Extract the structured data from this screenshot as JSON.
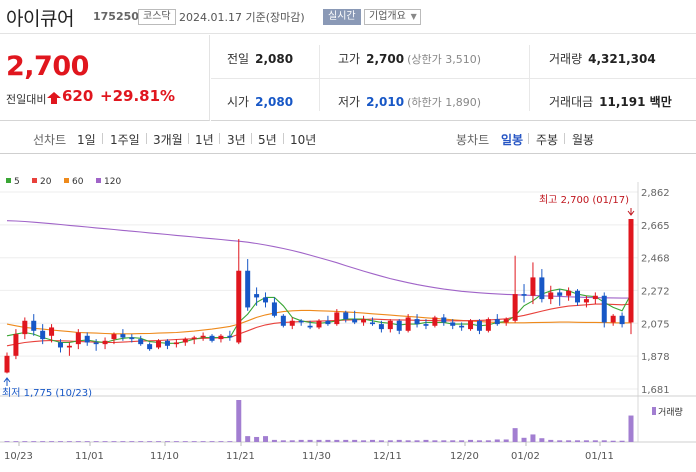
{
  "header": {
    "name": "아이큐어",
    "code": "175250",
    "market": "코스닥",
    "base_date": "2024.01.17 기준(장마감)",
    "realtime_label": "실시간",
    "company_info_label": "기업개요"
  },
  "price": {
    "current": "2,700",
    "change_label": "전일대비",
    "change": "620",
    "change_rate": "+29.81%",
    "direction": "up-limit",
    "color": "#e0161e"
  },
  "stats": {
    "prev_close": {
      "label": "전일",
      "value": "2,080"
    },
    "open": {
      "label": "시가",
      "value": "2,080"
    },
    "high": {
      "label": "고가",
      "value": "2,700",
      "sub": "(상한가 3,510)"
    },
    "low": {
      "label": "저가",
      "value": "2,010",
      "sub": "(하한가 1,890)"
    },
    "volume": {
      "label": "거래량",
      "value": "4,321,304"
    },
    "amount": {
      "label": "거래대금",
      "value": "11,191",
      "unit": "백만"
    }
  },
  "tabs": {
    "line_label": "선차트",
    "line_items": [
      "1일",
      "1주일",
      "3개월",
      "1년",
      "3년",
      "5년",
      "10년"
    ],
    "candle_label": "봉차트",
    "candle_items": [
      "일봉",
      "주봉",
      "월봉"
    ],
    "active_candle": "일봉"
  },
  "chart_data": {
    "type": "candlestick",
    "legend": [
      {
        "name": "5",
        "color": "#3aa635"
      },
      {
        "name": "20",
        "color": "#e8413b"
      },
      {
        "name": "60",
        "color": "#ee8a1c"
      },
      {
        "name": "120",
        "color": "#a064c8"
      }
    ],
    "y_ticks": [
      "2,862",
      "2,665",
      "2,468",
      "2,272",
      "2,075",
      "1,878",
      "1,681"
    ],
    "y_tick_values": [
      2862,
      2665,
      2468,
      2272,
      2075,
      1878,
      1681
    ],
    "ylim": [
      1681,
      2862
    ],
    "x_labels": [
      "10/23",
      "11/01",
      "11/10",
      "11/21",
      "11/30",
      "12/11",
      "12/20",
      "01/02",
      "01/11"
    ],
    "high_annotation": "최고 2,700 (01/17)",
    "low_annotation": "최저 1,775 (10/23)",
    "volume_legend": "거래량",
    "candles": [
      [
        1780,
        1900,
        1775,
        1880
      ],
      [
        1880,
        2040,
        1860,
        2010
      ],
      [
        2010,
        2110,
        1980,
        2090
      ],
      [
        2090,
        2130,
        2000,
        2030
      ],
      [
        2030,
        2070,
        1950,
        1980
      ],
      [
        2000,
        2070,
        1960,
        2050
      ],
      [
        1960,
        1980,
        1900,
        1930
      ],
      [
        1930,
        1960,
        1880,
        1940
      ],
      [
        1950,
        2040,
        1920,
        2020
      ],
      [
        2000,
        2020,
        1940,
        1960
      ],
      [
        1960,
        1980,
        1910,
        1950
      ],
      [
        1950,
        1990,
        1920,
        1970
      ],
      [
        1980,
        2020,
        1950,
        2010
      ],
      [
        2010,
        2040,
        1970,
        1990
      ],
      [
        1990,
        2010,
        1960,
        1980
      ],
      [
        1980,
        2000,
        1940,
        1950
      ],
      [
        1950,
        1960,
        1910,
        1920
      ],
      [
        1930,
        1980,
        1920,
        1970
      ],
      [
        1970,
        1980,
        1920,
        1940
      ],
      [
        1950,
        1980,
        1930,
        1960
      ],
      [
        1960,
        1990,
        1940,
        1980
      ],
      [
        1980,
        2000,
        1950,
        1990
      ],
      [
        1990,
        2020,
        1970,
        2000
      ],
      [
        2000,
        2010,
        1960,
        1970
      ],
      [
        1980,
        2010,
        1960,
        2000
      ],
      [
        2000,
        2030,
        1970,
        1990
      ],
      [
        1960,
        2580,
        1950,
        2390
      ],
      [
        2390,
        2460,
        2150,
        2170
      ],
      [
        2250,
        2290,
        2180,
        2230
      ],
      [
        2230,
        2260,
        2170,
        2200
      ],
      [
        2200,
        2230,
        2110,
        2120
      ],
      [
        2120,
        2130,
        2050,
        2060
      ],
      [
        2060,
        2110,
        2040,
        2090
      ],
      [
        2090,
        2100,
        2060,
        2080
      ],
      [
        2060,
        2090,
        2040,
        2050
      ],
      [
        2050,
        2100,
        2040,
        2090
      ],
      [
        2090,
        2120,
        2060,
        2070
      ],
      [
        2070,
        2160,
        2060,
        2140
      ],
      [
        2140,
        2150,
        2080,
        2100
      ],
      [
        2100,
        2150,
        2070,
        2080
      ],
      [
        2080,
        2120,
        2060,
        2100
      ],
      [
        2080,
        2110,
        2060,
        2070
      ],
      [
        2070,
        2090,
        2020,
        2040
      ],
      [
        2040,
        2100,
        2020,
        2090
      ],
      [
        2090,
        2100,
        2010,
        2030
      ],
      [
        2030,
        2130,
        2020,
        2110
      ],
      [
        2100,
        2130,
        2050,
        2070
      ],
      [
        2070,
        2100,
        2040,
        2060
      ],
      [
        2060,
        2120,
        2050,
        2110
      ],
      [
        2110,
        2130,
        2060,
        2080
      ],
      [
        2080,
        2100,
        2040,
        2060
      ],
      [
        2060,
        2080,
        2030,
        2050
      ],
      [
        2040,
        2100,
        2030,
        2090
      ],
      [
        2090,
        2100,
        2010,
        2030
      ],
      [
        2030,
        2110,
        2020,
        2100
      ],
      [
        2100,
        2130,
        2060,
        2070
      ],
      [
        2080,
        2110,
        2060,
        2100
      ],
      [
        2090,
        2480,
        2080,
        2250
      ],
      [
        2250,
        2310,
        2200,
        2240
      ],
      [
        2240,
        2440,
        2190,
        2350
      ],
      [
        2350,
        2400,
        2200,
        2220
      ],
      [
        2220,
        2300,
        2190,
        2260
      ],
      [
        2260,
        2280,
        2180,
        2240
      ],
      [
        2240,
        2290,
        2210,
        2270
      ],
      [
        2270,
        2280,
        2180,
        2200
      ],
      [
        2200,
        2240,
        2170,
        2220
      ],
      [
        2220,
        2260,
        2190,
        2240
      ],
      [
        2240,
        2260,
        2050,
        2080
      ],
      [
        2080,
        2130,
        2060,
        2120
      ],
      [
        2120,
        2140,
        2050,
        2070
      ],
      [
        2080,
        2700,
        2010,
        2700
      ]
    ],
    "ma5": [
      2000,
      2010,
      2020,
      2010,
      1990,
      1975,
      1960,
      1960,
      1970,
      1975,
      1965,
      1960,
      1975,
      1985,
      1990,
      1985,
      1965,
      1960,
      1955,
      1955,
      1965,
      1980,
      1990,
      1990,
      1990,
      1990,
      2080,
      2130,
      2200,
      2230,
      2230,
      2180,
      2110,
      2090,
      2080,
      2075,
      2080,
      2090,
      2100,
      2100,
      2100,
      2090,
      2080,
      2075,
      2065,
      2070,
      2070,
      2080,
      2080,
      2080,
      2070,
      2070,
      2070,
      2060,
      2065,
      2080,
      2085,
      2120,
      2180,
      2210,
      2250,
      2270,
      2280,
      2270,
      2250,
      2240,
      2235,
      2200,
      2170,
      2150,
      2250
    ],
    "ma20": [
      1940,
      1950,
      1960,
      1965,
      1970,
      1972,
      1970,
      1968,
      1966,
      1964,
      1962,
      1960,
      1960,
      1962,
      1965,
      1968,
      1970,
      1972,
      1975,
      1978,
      1980,
      1982,
      1985,
      1986,
      1988,
      1990,
      2010,
      2030,
      2050,
      2065,
      2075,
      2080,
      2082,
      2085,
      2087,
      2088,
      2090,
      2092,
      2094,
      2096,
      2098,
      2100,
      2098,
      2096,
      2095,
      2094,
      2093,
      2092,
      2091,
      2090,
      2090,
      2090,
      2091,
      2092,
      2094,
      2098,
      2102,
      2112,
      2122,
      2135,
      2148,
      2160,
      2170,
      2178,
      2182,
      2186,
      2190,
      2190,
      2188,
      2186,
      2190
    ],
    "ma60": [
      2070,
      2060,
      2050,
      2045,
      2040,
      2035,
      2030,
      2025,
      2020,
      2018,
      2016,
      2014,
      2012,
      2012,
      2012,
      2013,
      2014,
      2016,
      2018,
      2020,
      2024,
      2028,
      2034,
      2040,
      2048,
      2056,
      2070,
      2090,
      2110,
      2125,
      2136,
      2145,
      2150,
      2152,
      2152,
      2150,
      2148,
      2146,
      2143,
      2140,
      2136,
      2132,
      2128,
      2124,
      2120,
      2116,
      2112,
      2108,
      2104,
      2100,
      2096,
      2092,
      2088,
      2085,
      2082,
      2080,
      2078,
      2078,
      2078,
      2079,
      2080,
      2081,
      2082,
      2082,
      2081,
      2080,
      2080,
      2079,
      2078,
      2077,
      2078
    ],
    "ma120": [
      2690,
      2688,
      2685,
      2681,
      2677,
      2672,
      2667,
      2662,
      2657,
      2652,
      2647,
      2642,
      2637,
      2632,
      2627,
      2622,
      2617,
      2612,
      2607,
      2602,
      2597,
      2592,
      2587,
      2582,
      2577,
      2572,
      2567,
      2561,
      2553,
      2544,
      2534,
      2523,
      2511,
      2498,
      2484,
      2469,
      2454,
      2438,
      2421,
      2404,
      2388,
      2372,
      2357,
      2343,
      2330,
      2318,
      2307,
      2297,
      2288,
      2280,
      2273,
      2267,
      2262,
      2258,
      2254,
      2251,
      2248,
      2246,
      2244,
      2242,
      2240,
      2238,
      2236,
      2234,
      2232,
      2230,
      2229,
      2228,
      2227,
      2226,
      2226
    ],
    "volume": [
      0.02,
      0.02,
      0.02,
      0.02,
      0.02,
      0.02,
      0.02,
      0.02,
      0.02,
      0.02,
      0.02,
      0.02,
      0.02,
      0.02,
      0.02,
      0.02,
      0.02,
      0.02,
      0.02,
      0.02,
      0.02,
      0.02,
      0.02,
      0.02,
      0.02,
      0.02,
      1.0,
      0.14,
      0.12,
      0.14,
      0.05,
      0.04,
      0.04,
      0.05,
      0.05,
      0.05,
      0.05,
      0.05,
      0.05,
      0.05,
      0.04,
      0.05,
      0.04,
      0.04,
      0.05,
      0.04,
      0.04,
      0.05,
      0.04,
      0.04,
      0.04,
      0.04,
      0.05,
      0.04,
      0.04,
      0.06,
      0.06,
      0.33,
      0.1,
      0.18,
      0.09,
      0.05,
      0.04,
      0.04,
      0.04,
      0.04,
      0.04,
      0.04,
      0.03,
      0.03,
      0.63
    ],
    "up_color": "#e0161e",
    "down_color": "#1757c6",
    "volume_color": "#a27ed1"
  }
}
